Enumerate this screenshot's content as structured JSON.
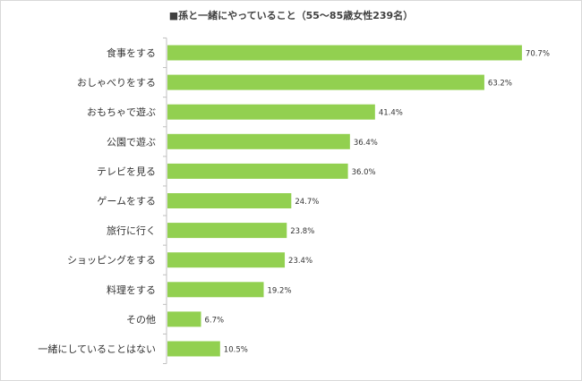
{
  "chart_data": {
    "type": "bar",
    "orientation": "horizontal",
    "title": "■孫と一緒にやっていること（55～85歳女性239名）",
    "categories": [
      "食事をする",
      "おしゃべりをする",
      "おもちゃで遊ぶ",
      "公園で遊ぶ",
      "テレビを見る",
      "ゲームをする",
      "旅行に行く",
      "ショッピングをする",
      "料理をする",
      "その他",
      "一緒にしていることはない"
    ],
    "values": [
      70.7,
      63.2,
      41.4,
      36.4,
      36.0,
      24.7,
      23.8,
      23.4,
      19.2,
      6.7,
      10.5
    ],
    "value_labels": [
      "70.7%",
      "63.2%",
      "41.4%",
      "36.4%",
      "36.0%",
      "24.7%",
      "23.8%",
      "23.4%",
      "19.2%",
      "6.7%",
      "10.5%"
    ],
    "unit": "%",
    "bar_color": "#92d050",
    "axis_line_color": "#bfbfbf",
    "xlim": [
      0,
      80
    ],
    "grid": false,
    "legend": "none"
  }
}
